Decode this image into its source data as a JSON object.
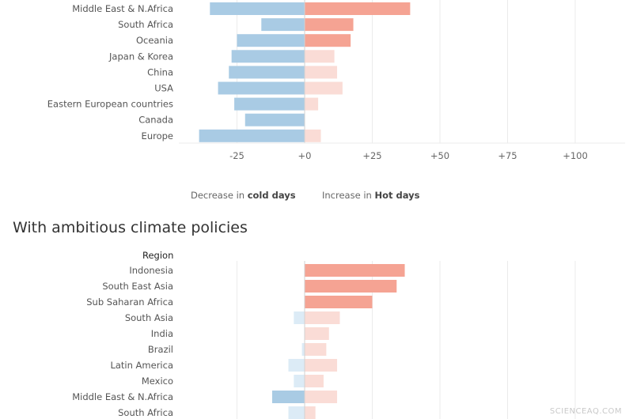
{
  "legend": {
    "decrease_prefix": "Decrease in ",
    "decrease_bold": "cold days",
    "increase_prefix": "Increase in ",
    "increase_bold": "Hot days"
  },
  "section2_title": "With ambitious climate policies",
  "region_header": "Region",
  "watermark": "SCIENCEAQ.COM",
  "colors": {
    "cold_strong": "#a9cbe4",
    "cold_light": "#dcebf6",
    "hot_strong": "#f5a393",
    "hot_light": "#fadcd6",
    "grid": "#ebebeb",
    "zero_line": "#d2d2d2"
  },
  "chart_data": [
    {
      "type": "bar",
      "orientation": "horizontal-diverging",
      "categories": [
        "Middle East & N.Africa",
        "South Africa",
        "Oceania",
        "Japan & Korea",
        "China",
        "USA",
        "Eastern European countries",
        "Canada",
        "Europe"
      ],
      "series": [
        {
          "name": "Decrease in cold days",
          "values": [
            -35,
            -16,
            -25,
            -27,
            -28,
            -32,
            -26,
            -22,
            -39
          ]
        },
        {
          "name": "Increase in Hot days",
          "values": [
            39,
            18,
            17,
            11,
            12,
            14,
            5,
            0,
            6
          ]
        }
      ],
      "xlim": [
        -42,
        119
      ],
      "xticks": [
        -25,
        0,
        25,
        50,
        75,
        100
      ],
      "xtick_labels": [
        "-25",
        "+0",
        "+25",
        "+50",
        "+75",
        "+100"
      ]
    },
    {
      "type": "bar",
      "orientation": "horizontal-diverging",
      "title": "With ambitious climate policies",
      "categories": [
        "Indonesia",
        "South East Asia",
        "Sub Saharan Africa",
        "South Asia",
        "India",
        "Brazil",
        "Latin America",
        "Mexico",
        "Middle East & N.Africa",
        "South Africa"
      ],
      "series": [
        {
          "name": "Decrease in cold days",
          "values": [
            0,
            0,
            0,
            -4,
            0,
            -1,
            -6,
            -4,
            -12,
            -6
          ]
        },
        {
          "name": "Increase in Hot days",
          "values": [
            37,
            34,
            25,
            13,
            9,
            8,
            12,
            7,
            12,
            4
          ]
        }
      ],
      "xlim": [
        -42,
        119
      ],
      "xticks": [
        -25,
        0,
        25,
        50,
        75,
        100
      ]
    }
  ]
}
